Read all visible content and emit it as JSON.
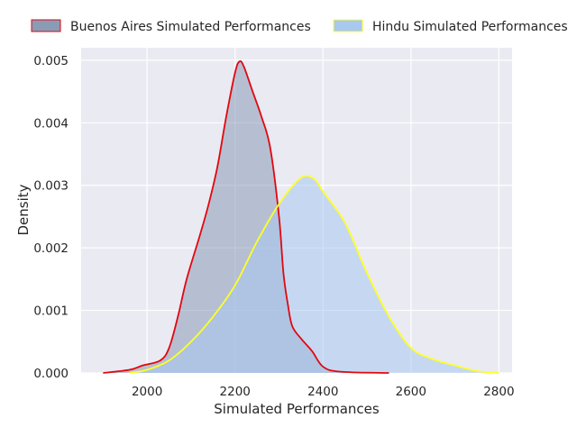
{
  "chart_data": {
    "type": "area",
    "subtype": "kde-density",
    "title": "",
    "xlabel": "Simulated Performances",
    "ylabel": "Density",
    "xlim": [
      1850,
      2830
    ],
    "ylim": [
      0,
      0.0052
    ],
    "xticks": [
      2000,
      2200,
      2400,
      2600,
      2800
    ],
    "yticks": [
      0.0,
      0.001,
      0.002,
      0.003,
      0.004,
      0.005
    ],
    "ytick_labels": [
      "0.000",
      "0.001",
      "0.002",
      "0.003",
      "0.004",
      "0.005"
    ],
    "grid": true,
    "legend_position": "top, above plot",
    "background": "#eaeaf2",
    "series": [
      {
        "name": "Buenos Aires Simulated Performances",
        "fill_color": "#8a9bb6",
        "line_color": "#e3070f",
        "fill_opacity": 0.55,
        "points": [
          [
            1900,
            0.0
          ],
          [
            1960,
            5e-05
          ],
          [
            1990,
            0.00012
          ],
          [
            2030,
            0.0002
          ],
          [
            2050,
            0.0004
          ],
          [
            2070,
            0.0009
          ],
          [
            2090,
            0.0015
          ],
          [
            2120,
            0.0022
          ],
          [
            2140,
            0.0027
          ],
          [
            2160,
            0.0033
          ],
          [
            2180,
            0.0041
          ],
          [
            2200,
            0.0048
          ],
          [
            2210,
            0.00498
          ],
          [
            2220,
            0.0049
          ],
          [
            2240,
            0.0045
          ],
          [
            2260,
            0.0041
          ],
          [
            2280,
            0.0036
          ],
          [
            2300,
            0.0025
          ],
          [
            2310,
            0.0016
          ],
          [
            2320,
            0.0011
          ],
          [
            2330,
            0.00075
          ],
          [
            2350,
            0.00055
          ],
          [
            2375,
            0.00035
          ],
          [
            2400,
            0.0001
          ],
          [
            2440,
            2e-05
          ],
          [
            2550,
            0.0
          ]
        ]
      },
      {
        "name": "Hindu Simulated Performances",
        "fill_color": "#a8c8f0",
        "line_color": "#ffff26",
        "fill_opacity": 0.55,
        "points": [
          [
            1960,
            0.0
          ],
          [
            2000,
            5e-05
          ],
          [
            2050,
            0.0002
          ],
          [
            2100,
            0.0005
          ],
          [
            2150,
            0.0009
          ],
          [
            2200,
            0.0014
          ],
          [
            2250,
            0.0021
          ],
          [
            2300,
            0.0027
          ],
          [
            2350,
            0.00312
          ],
          [
            2380,
            0.0031
          ],
          [
            2400,
            0.0029
          ],
          [
            2450,
            0.0024
          ],
          [
            2500,
            0.0016
          ],
          [
            2550,
            0.0009
          ],
          [
            2600,
            0.0004
          ],
          [
            2650,
            0.00022
          ],
          [
            2700,
            0.00012
          ],
          [
            2750,
            3e-05
          ],
          [
            2800,
            0.0
          ]
        ]
      }
    ]
  }
}
